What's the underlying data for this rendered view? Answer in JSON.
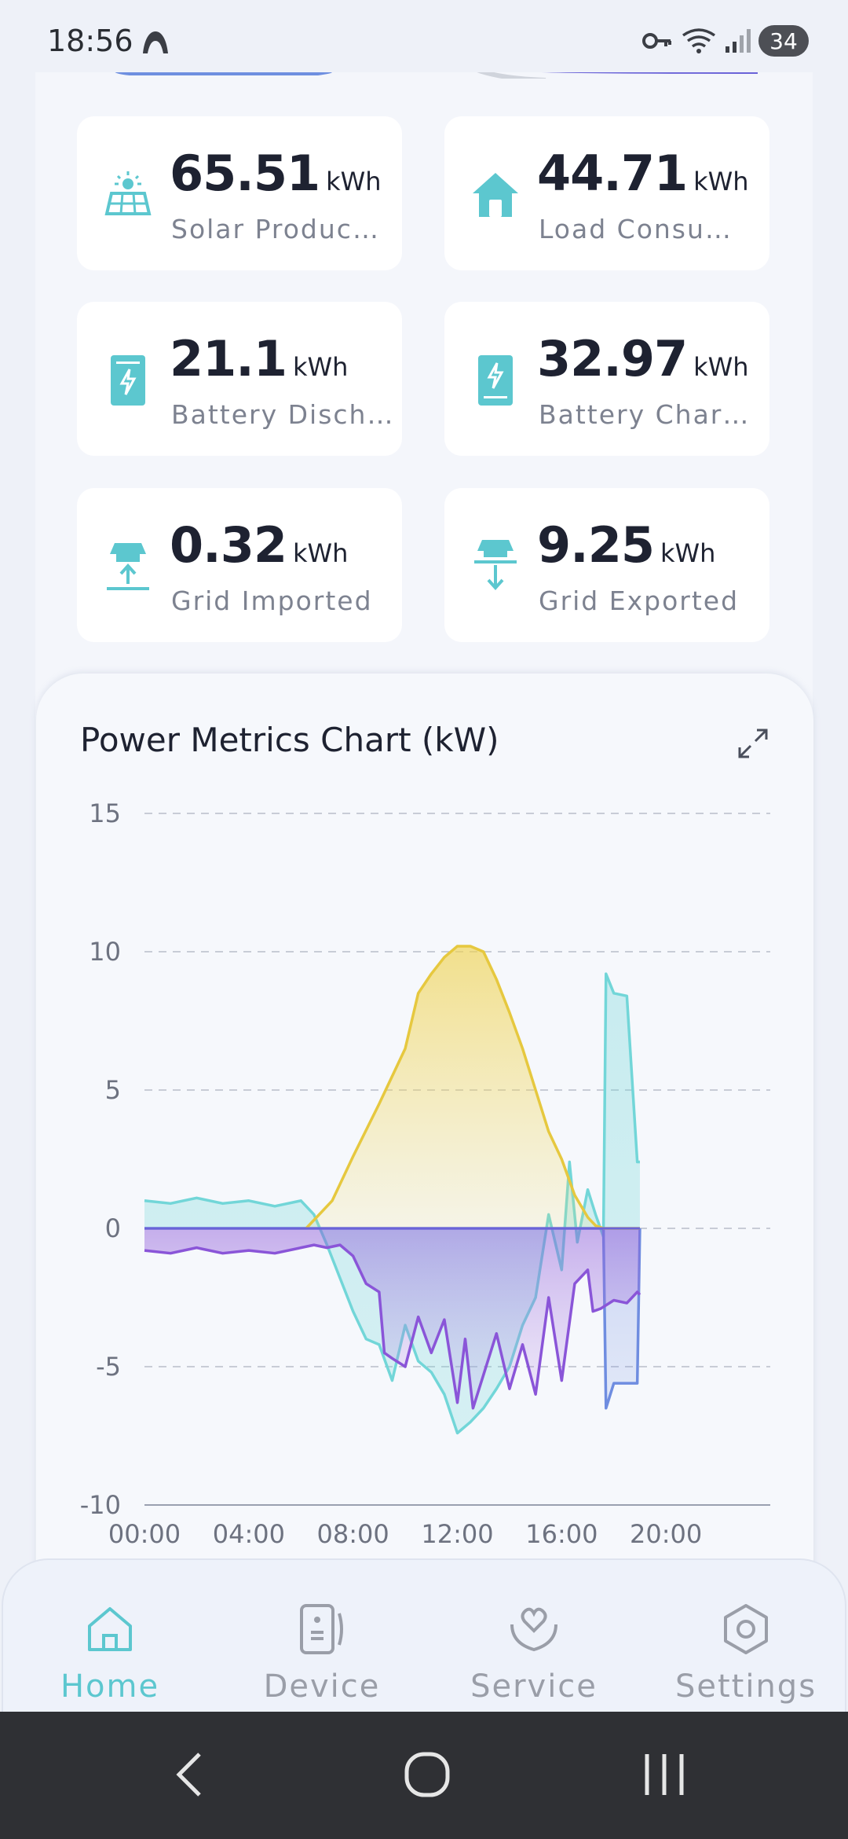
{
  "status_bar": {
    "time": "18:56",
    "battery": "34"
  },
  "stats": [
    {
      "value": "65.51",
      "unit": "kWh",
      "label": "Solar Produc…",
      "icon": "solar-panel-icon"
    },
    {
      "value": "44.71",
      "unit": "kWh",
      "label": "Load Consu…",
      "icon": "home-icon"
    },
    {
      "value": "21.1",
      "unit": "kWh",
      "label": "Battery Disch…",
      "icon": "battery-discharge-icon"
    },
    {
      "value": "32.97",
      "unit": "kWh",
      "label": "Battery Char…",
      "icon": "battery-charge-icon"
    },
    {
      "value": "0.32",
      "unit": "kWh",
      "label": "Grid Imported",
      "icon": "grid-import-icon"
    },
    {
      "value": "9.25",
      "unit": "kWh",
      "label": "Grid Exported",
      "icon": "grid-export-icon"
    }
  ],
  "chart": {
    "title": "Power Metrics Chart (kW)",
    "expand_icon": "expand-icon"
  },
  "chart_data": {
    "type": "area",
    "title": "Power Metrics Chart (kW)",
    "xlabel": "",
    "ylabel": "",
    "x_ticks": [
      "00:00",
      "04:00",
      "08:00",
      "12:00",
      "16:00",
      "20:00"
    ],
    "xlim": [
      0,
      24
    ],
    "ylim": [
      -10,
      15
    ],
    "y_ticks": [
      15,
      10,
      5,
      0,
      -5,
      -10
    ],
    "grid": true,
    "series": [
      {
        "color": "#e6c83f",
        "x": [
          6.2,
          7.2,
          8,
          9,
          10,
          10.5,
          11,
          11.5,
          12,
          12.5,
          13,
          13.5,
          14,
          14.5,
          15,
          15.5,
          16,
          16.5,
          17,
          17.3,
          17.6,
          18,
          19
        ],
        "y": [
          0,
          1,
          2.6,
          4.5,
          6.5,
          8.5,
          9.2,
          9.8,
          10.2,
          10.2,
          10,
          9,
          7.8,
          6.5,
          5,
          3.5,
          2.5,
          1.2,
          0.4,
          0.1,
          0,
          0,
          0
        ]
      },
      {
        "color": "#72d6d8",
        "x": [
          0,
          1,
          2,
          3,
          4,
          5,
          6,
          6.5,
          7,
          7.5,
          8,
          8.5,
          9,
          9.5,
          10,
          10.5,
          11,
          11.5,
          12,
          12.5,
          13,
          13.5,
          14,
          14.5,
          15,
          15.5,
          16,
          16.3,
          16.6,
          17,
          17.3,
          17.6,
          17.7,
          18,
          18.5,
          18.9,
          19
        ],
        "y": [
          1,
          0.9,
          1.1,
          0.9,
          1,
          0.8,
          1,
          0.5,
          -0.6,
          -1.8,
          -3,
          -4,
          -4.2,
          -5.5,
          -3.5,
          -4.8,
          -5.2,
          -6,
          -7.4,
          -7,
          -6.5,
          -5.8,
          -5,
          -3.5,
          -2.5,
          0.5,
          -1.5,
          2.4,
          -0.5,
          1.4,
          0.5,
          -0.3,
          9.2,
          8.5,
          8.4,
          2.4,
          2.4
        ]
      },
      {
        "color": "#8a55d8",
        "x": [
          0,
          1,
          2,
          3,
          4,
          5,
          6,
          6.5,
          7,
          7.5,
          8,
          8.5,
          9,
          9.2,
          9.5,
          10,
          10.5,
          11,
          11.5,
          12,
          12.3,
          12.6,
          13,
          13.5,
          14,
          14.5,
          15,
          15.5,
          16,
          16.5,
          17,
          17.2,
          17.5,
          18,
          18.5,
          18.9,
          19
        ],
        "y": [
          -0.8,
          -0.9,
          -0.7,
          -0.9,
          -0.8,
          -0.9,
          -0.7,
          -0.6,
          -0.7,
          -0.6,
          -1,
          -2,
          -2.3,
          -4.5,
          -4.7,
          -5,
          -3.2,
          -4.5,
          -3.3,
          -6.3,
          -4,
          -6.5,
          -5.3,
          -3.8,
          -5.8,
          -4.2,
          -6,
          -2.5,
          -5.5,
          -2,
          -1.5,
          -3,
          -2.9,
          -2.6,
          -2.7,
          -2.3,
          -2.4
        ]
      },
      {
        "color": "#6f8de0",
        "x": [
          0,
          17.6,
          17.7,
          18,
          18.5,
          18.9,
          19
        ],
        "y": [
          0,
          0,
          -6.5,
          -5.6,
          -5.6,
          -5.6,
          0
        ]
      }
    ]
  },
  "bottom_nav": {
    "items": [
      {
        "label": "Home",
        "icon": "home-icon",
        "active": true
      },
      {
        "label": "Device",
        "icon": "device-icon",
        "active": false
      },
      {
        "label": "Service",
        "icon": "service-icon",
        "active": false
      },
      {
        "label": "Settings",
        "icon": "gear-icon",
        "active": false
      }
    ]
  },
  "colors": {
    "accent": "#5cc7cf",
    "text_dark": "#1e2231",
    "text_muted": "#7d8290"
  }
}
